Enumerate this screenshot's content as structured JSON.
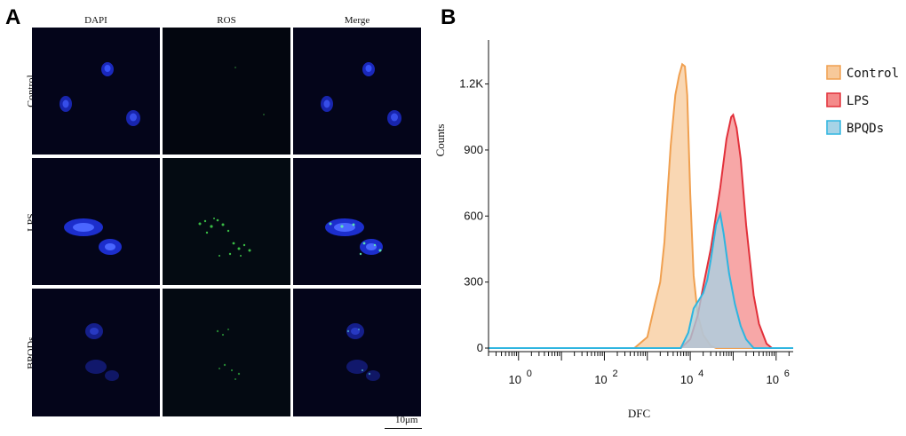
{
  "panel_a": {
    "letter": "A",
    "columns": [
      "DAPI",
      "ROS",
      "Merge"
    ],
    "rows": [
      "Control",
      "LPS",
      "BPQDs"
    ],
    "scale_bar": "10μm"
  },
  "panel_b": {
    "letter": "B"
  },
  "chart_data": {
    "type": "area",
    "title": "",
    "xlabel": "DFC",
    "ylabel": "Counts",
    "x_scale": "log",
    "xlim": [
      0.2,
      2500000
    ],
    "ylim": [
      0,
      1400
    ],
    "y_ticks": [
      {
        "value": 0,
        "label": "0"
      },
      {
        "value": 300,
        "label": "300"
      },
      {
        "value": 600,
        "label": "600"
      },
      {
        "value": 900,
        "label": "900"
      },
      {
        "value": 1200,
        "label": "1.2K"
      }
    ],
    "x_ticks": [
      {
        "value": 1,
        "base": "10",
        "exp": "0"
      },
      {
        "value": 100,
        "base": "10",
        "exp": "2"
      },
      {
        "value": 10000,
        "base": "10",
        "exp": "4"
      },
      {
        "value": 1000000,
        "base": "10",
        "exp": "6"
      }
    ],
    "grid": false,
    "legend_position": "right",
    "series": [
      {
        "name": "Control",
        "fill": "#f7c99a",
        "stroke": "#f0a050",
        "points": [
          [
            0.2,
            0
          ],
          [
            500,
            0
          ],
          [
            1000,
            50
          ],
          [
            1500,
            200
          ],
          [
            2000,
            300
          ],
          [
            2500,
            480
          ],
          [
            3000,
            720
          ],
          [
            3500,
            920
          ],
          [
            4500,
            1150
          ],
          [
            5500,
            1240
          ],
          [
            6500,
            1290
          ],
          [
            7500,
            1280
          ],
          [
            8500,
            1150
          ],
          [
            10000,
            700
          ],
          [
            12000,
            330
          ],
          [
            15000,
            150
          ],
          [
            20000,
            60
          ],
          [
            30000,
            10
          ],
          [
            40000,
            0
          ],
          [
            2500000,
            0
          ]
        ]
      },
      {
        "name": "LPS",
        "fill": "#f48a8a",
        "stroke": "#e2303a",
        "points": [
          [
            0.2,
            0
          ],
          [
            6000,
            0
          ],
          [
            10000,
            40
          ],
          [
            15000,
            150
          ],
          [
            20000,
            280
          ],
          [
            30000,
            450
          ],
          [
            50000,
            730
          ],
          [
            70000,
            950
          ],
          [
            90000,
            1050
          ],
          [
            100000,
            1060
          ],
          [
            120000,
            1000
          ],
          [
            150000,
            860
          ],
          [
            200000,
            560
          ],
          [
            300000,
            240
          ],
          [
            400000,
            110
          ],
          [
            600000,
            20
          ],
          [
            800000,
            0
          ],
          [
            2500000,
            0
          ]
        ]
      },
      {
        "name": "BPQDs",
        "fill": "#a6d3e6",
        "stroke": "#2eb5e0",
        "points": [
          [
            0.2,
            0
          ],
          [
            6000,
            0
          ],
          [
            9000,
            70
          ],
          [
            12000,
            180
          ],
          [
            15000,
            210
          ],
          [
            20000,
            250
          ],
          [
            25000,
            310
          ],
          [
            30000,
            400
          ],
          [
            40000,
            560
          ],
          [
            50000,
            610
          ],
          [
            60000,
            520
          ],
          [
            80000,
            340
          ],
          [
            110000,
            200
          ],
          [
            150000,
            100
          ],
          [
            200000,
            40
          ],
          [
            300000,
            0
          ],
          [
            2500000,
            0
          ]
        ]
      }
    ]
  }
}
